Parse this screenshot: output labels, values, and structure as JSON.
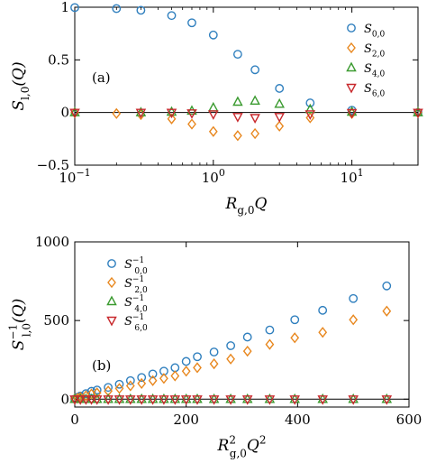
{
  "chart_data": [
    {
      "type": "scatter",
      "panel_label": "(a)",
      "xscale": "log",
      "xlim": [
        0.1,
        30
      ],
      "ylim": [
        -0.5,
        1.0
      ],
      "xticks": [
        "10^-1",
        "10^0",
        "10^1"
      ],
      "yticks": [
        "-0.5",
        "0",
        "0.5",
        "1"
      ],
      "xlabel": {
        "base": "R",
        "sub": "g,0",
        "tail": "Q"
      },
      "ylabel": {
        "base": "S",
        "sub": "l,0",
        "tail": "(Q)"
      },
      "legend_position": "top-right",
      "series": [
        {
          "name": "S_{0,0}",
          "label": {
            "base": "S",
            "sub": "0,0"
          },
          "marker": "circle",
          "color": "#2f7fbe",
          "x": [
            0.1,
            0.2,
            0.3,
            0.5,
            0.7,
            1.0,
            1.5,
            2.0,
            3.0,
            5.0,
            10.0,
            30.0
          ],
          "y": [
            0.997,
            0.987,
            0.971,
            0.921,
            0.852,
            0.736,
            0.553,
            0.406,
            0.229,
            0.091,
            0.022,
            0.0
          ]
        },
        {
          "name": "S_{2,0}",
          "label": {
            "base": "S",
            "sub": "2,0"
          },
          "marker": "diamond",
          "color": "#e8871e",
          "x": [
            0.1,
            0.2,
            0.3,
            0.5,
            0.7,
            1.0,
            1.5,
            2.0,
            3.0,
            5.0,
            10.0,
            30.0
          ],
          "y": [
            -0.002,
            -0.01,
            -0.02,
            -0.06,
            -0.11,
            -0.18,
            -0.22,
            -0.2,
            -0.13,
            -0.05,
            -0.01,
            0.0
          ]
        },
        {
          "name": "S_{4,0}",
          "label": {
            "base": "S",
            "sub": "4,0"
          },
          "marker": "triangle-up",
          "color": "#3a9a2f",
          "x": [
            0.1,
            0.3,
            0.5,
            0.7,
            1.0,
            1.5,
            2.0,
            3.0,
            5.0,
            10.0,
            30.0
          ],
          "y": [
            0.0,
            0.0,
            0.005,
            0.015,
            0.045,
            0.1,
            0.11,
            0.08,
            0.03,
            0.005,
            0.0
          ]
        },
        {
          "name": "S_{6,0}",
          "label": {
            "base": "S",
            "sub": "6,0"
          },
          "marker": "triangle-down",
          "color": "#c8282c",
          "x": [
            0.1,
            0.3,
            0.5,
            0.7,
            1.0,
            1.5,
            2.0,
            3.0,
            5.0,
            10.0,
            30.0
          ],
          "y": [
            0.0,
            0.0,
            0.0,
            -0.005,
            -0.015,
            -0.04,
            -0.05,
            -0.04,
            -0.015,
            -0.003,
            0.0
          ]
        }
      ]
    },
    {
      "type": "scatter",
      "panel_label": "(b)",
      "xlim": [
        0,
        600
      ],
      "ylim": [
        -50,
        1000
      ],
      "xticks": [
        "0",
        "200",
        "400",
        "600"
      ],
      "yticks": [
        "0",
        "500",
        "1000"
      ],
      "xlabel": {
        "base": "R",
        "sub": "g,0",
        "sup": "2",
        "tail": "Q",
        "tailsup": "2"
      },
      "ylabel": {
        "base": "S",
        "sub": "l,0",
        "sup": "−1",
        "tail": "(Q)"
      },
      "legend_position": "top-left",
      "series": [
        {
          "name": "S_{0,0}^{-1}",
          "label": {
            "base": "S",
            "sub": "0,0",
            "sup": "−1"
          },
          "marker": "circle",
          "color": "#2f7fbe",
          "x": [
            0,
            5,
            10,
            20,
            30,
            40,
            60,
            80,
            100,
            120,
            140,
            160,
            180,
            200,
            220,
            250,
            280,
            310,
            350,
            395,
            445,
            500,
            560
          ],
          "y": [
            1,
            12,
            20,
            35,
            50,
            58,
            75,
            95,
            118,
            138,
            160,
            178,
            200,
            240,
            270,
            300,
            340,
            395,
            440,
            505,
            565,
            640,
            720
          ]
        },
        {
          "name": "S_{2,0}^{-1}",
          "label": {
            "base": "S",
            "sub": "2,0",
            "sup": "−1"
          },
          "marker": "diamond",
          "color": "#e8871e",
          "x": [
            0,
            5,
            10,
            20,
            30,
            40,
            60,
            80,
            100,
            120,
            140,
            160,
            180,
            200,
            220,
            250,
            280,
            310,
            350,
            395,
            445,
            500,
            560
          ],
          "y": [
            1,
            6,
            12,
            22,
            33,
            40,
            52,
            68,
            85,
            100,
            118,
            132,
            148,
            178,
            200,
            225,
            255,
            305,
            348,
            390,
            425,
            505,
            560
          ]
        },
        {
          "name": "S_{4,0}^{-1}",
          "label": {
            "base": "S",
            "sub": "4,0",
            "sup": "−1"
          },
          "marker": "triangle-up",
          "color": "#3a9a2f",
          "x": [
            0,
            10,
            20,
            30,
            40,
            60,
            80,
            100,
            120,
            140,
            160,
            180,
            200,
            220,
            250,
            280,
            310,
            350,
            395,
            445,
            500,
            560
          ],
          "y": [
            0,
            0,
            0,
            0,
            0,
            0,
            0,
            0,
            0,
            0,
            0,
            0,
            0,
            0,
            0,
            0,
            0,
            0,
            0,
            0,
            0,
            0
          ]
        },
        {
          "name": "S_{6,0}^{-1}",
          "label": {
            "base": "S",
            "sub": "6,0",
            "sup": "−1"
          },
          "marker": "triangle-down",
          "color": "#c8282c",
          "x": [
            0,
            10,
            20,
            30,
            40,
            60,
            80,
            100,
            120,
            140,
            160,
            180,
            200,
            220,
            250,
            280,
            310,
            350,
            395,
            445,
            500,
            560
          ],
          "y": [
            0,
            0,
            0,
            0,
            0,
            0,
            0,
            0,
            0,
            0,
            0,
            0,
            0,
            0,
            0,
            0,
            0,
            0,
            0,
            0,
            0,
            0
          ]
        }
      ]
    }
  ]
}
